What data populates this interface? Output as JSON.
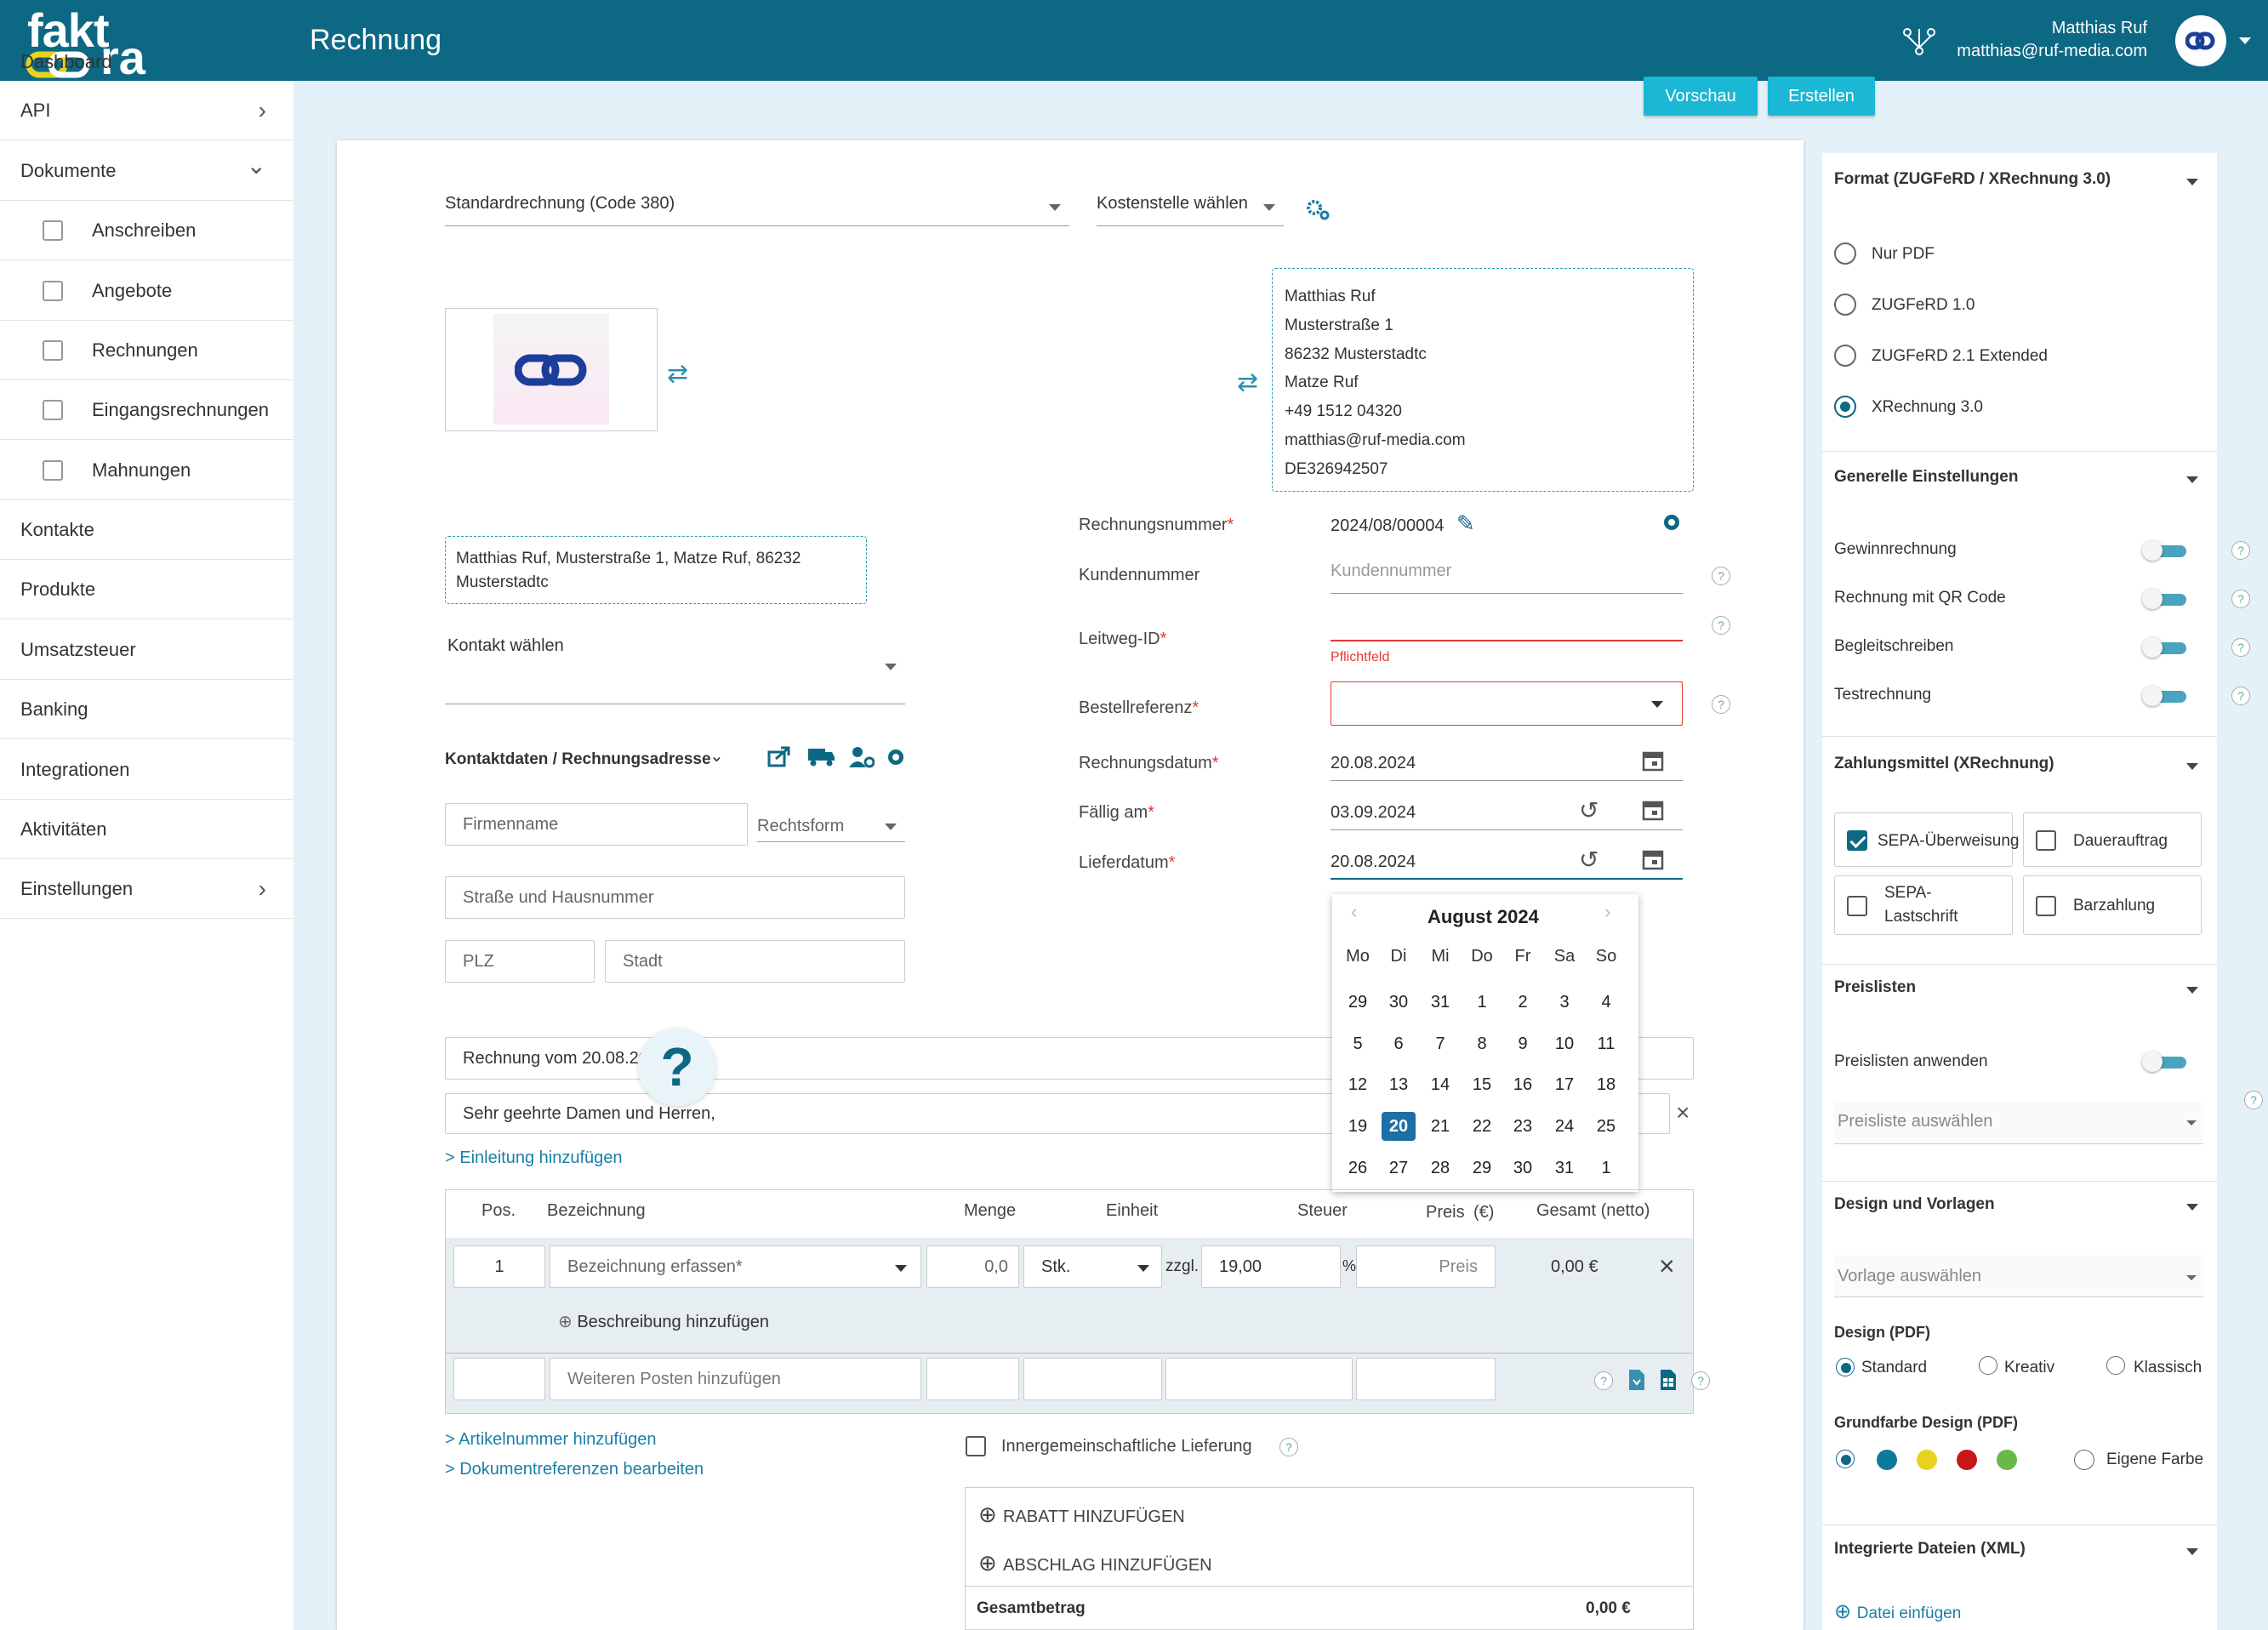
{
  "header": {
    "logo_top": "fakt",
    "logo_bottom": "ra",
    "page_title": "Rechnung",
    "user_name": "Matthias Ruf",
    "user_email": "matthias@ruf-media.com"
  },
  "sidebar": {
    "items": [
      {
        "label": "Dashboard"
      },
      {
        "label": "API",
        "chevron": "›"
      },
      {
        "label": "Dokumente",
        "chevron": "⌄"
      },
      {
        "label": "Anschreiben",
        "sub": true
      },
      {
        "label": "Angebote",
        "sub": true
      },
      {
        "label": "Rechnungen",
        "sub": true
      },
      {
        "label": "Eingangsrechnungen",
        "sub": true
      },
      {
        "label": "Mahnungen",
        "sub": true
      },
      {
        "label": "Kontakte"
      },
      {
        "label": "Produkte"
      },
      {
        "label": "Umsatzsteuer"
      },
      {
        "label": "Banking"
      },
      {
        "label": "Integrationen"
      },
      {
        "label": "Aktivitäten"
      },
      {
        "label": "Einstellungen",
        "chevron": "›"
      }
    ]
  },
  "toolbar": {
    "preview": "Vorschau",
    "create": "Erstellen"
  },
  "form": {
    "invoice_type": "Standardrechnung (Code 380)",
    "cost_center": "Kostenstelle wählen",
    "sender_lines": [
      "Matthias Ruf",
      "Musterstraße 1",
      "86232 Musterstadtc",
      "Matze Ruf",
      "+49 1512 04320",
      "matthias@ruf-media.com",
      "DE326942507"
    ],
    "recipient_line": "Matthias Ruf, Musterstraße 1, Matze Ruf, 86232 Musterstadtc",
    "contact_select": "Kontakt wählen",
    "contact_section": "Kontaktdaten / Rechnungsadresse",
    "company_placeholder": "Firmenname",
    "legal_form": "Rechtsform",
    "street_placeholder": "Straße und Hausnummer",
    "zip_placeholder": "PLZ",
    "city_placeholder": "Stadt",
    "invoice_number_label": "Rechnungsnummer",
    "invoice_number": "2024/08/00004",
    "customer_number_label": "Kundennummer",
    "customer_number_placeholder": "Kundennummer",
    "leitweg_label": "Leitweg-ID",
    "required_hint": "Pflichtfeld",
    "order_ref_label": "Bestellreferenz",
    "invoice_date_label": "Rechnungsdatum",
    "invoice_date": "20.08.2024",
    "due_label": "Fällig am",
    "due_date": "03.09.2024",
    "delivery_label": "Lieferdatum",
    "delivery_date": "20.08.2024",
    "subject": "Rechnung vom 20.08.20",
    "greeting": "Sehr geehrte Damen und Herren,",
    "add_intro": "> Einleitung hinzufügen",
    "required_mark": "*",
    "help_glyph": "?"
  },
  "calendar": {
    "month": "August 2024",
    "weekdays": [
      "Mo",
      "Di",
      "Mi",
      "Do",
      "Fr",
      "Sa",
      "So"
    ],
    "weeks": [
      [
        "29",
        "30",
        "31",
        "1",
        "2",
        "3",
        "4"
      ],
      [
        "5",
        "6",
        "7",
        "8",
        "9",
        "10",
        "11"
      ],
      [
        "12",
        "13",
        "14",
        "15",
        "16",
        "17",
        "18"
      ],
      [
        "19",
        "20",
        "21",
        "22",
        "23",
        "24",
        "25"
      ],
      [
        "26",
        "27",
        "28",
        "29",
        "30",
        "31",
        "1"
      ]
    ],
    "selected": "20"
  },
  "table": {
    "headers": [
      "Pos.",
      "Bezeichnung",
      "Menge",
      "Einheit",
      "Steuer",
      "Preis",
      "(€)",
      "Gesamt (netto)"
    ],
    "row": {
      "pos": "1",
      "desc_placeholder": "Bezeichnung erfassen*",
      "qty": "0,0",
      "unit": "Stk.",
      "zzgl": "zzgl.",
      "tax": "19,00",
      "pct": "%",
      "price_placeholder": "Preis",
      "total": "0,00 €"
    },
    "add_description": "Beschreibung hinzufügen",
    "add_item_placeholder": "Weiteren Posten hinzufügen"
  },
  "below": {
    "article_number": "> Artikelnummer hinzufügen",
    "doc_refs": "> Dokumentreferenzen bearbeiten",
    "intra_eu": "Innergemeinschaftliche Lieferung",
    "discount": "RABATT HINZUFÜGEN",
    "deduction": "ABSCHLAG HINZUFÜGEN",
    "total_label": "Gesamtbetrag",
    "total": "0,00 €"
  },
  "right": {
    "format_title": "Format (ZUGFeRD / XRechnung 3.0)",
    "formats": [
      {
        "label": "Nur PDF",
        "selected": false
      },
      {
        "label": "ZUGFeRD 1.0",
        "selected": false
      },
      {
        "label": "ZUGFeRD 2.1 Extended",
        "selected": false
      },
      {
        "label": "XRechnung 3.0",
        "selected": true
      }
    ],
    "general_title": "Generelle Einstellungen",
    "general": [
      "Gewinnrechnung",
      "Rechnung mit QR Code",
      "Begleitschreiben",
      "Testrechnung"
    ],
    "payment_title": "Zahlungsmittel (XRechnung)",
    "payments": [
      {
        "label": "SEPA-Überweisung",
        "checked": true
      },
      {
        "label": "Dauerauftrag",
        "checked": false
      },
      {
        "label": "SEPA-Lastschrift",
        "checked": false
      },
      {
        "label": "Barzahlung",
        "checked": false
      }
    ],
    "pricelists_title": "Preislisten",
    "pricelists_apply": "Preislisten anwenden",
    "pricelist_select": "Preisliste auswählen",
    "design_title": "Design und Vorlagen",
    "template_select": "Vorlage auswählen",
    "design_pdf": "Design (PDF)",
    "designs": [
      "Standard",
      "Kreativ",
      "Klassisch"
    ],
    "color_title": "Grundfarbe Design (PDF)",
    "colors": [
      "#0d7a9a",
      "#e8d21c",
      "#c8161d",
      "#69b84a"
    ],
    "own_color": "Eigene Farbe",
    "files_title": "Integrierte Dateien (XML)",
    "add_file": "Datei einfügen"
  },
  "accent": "#0d6884"
}
